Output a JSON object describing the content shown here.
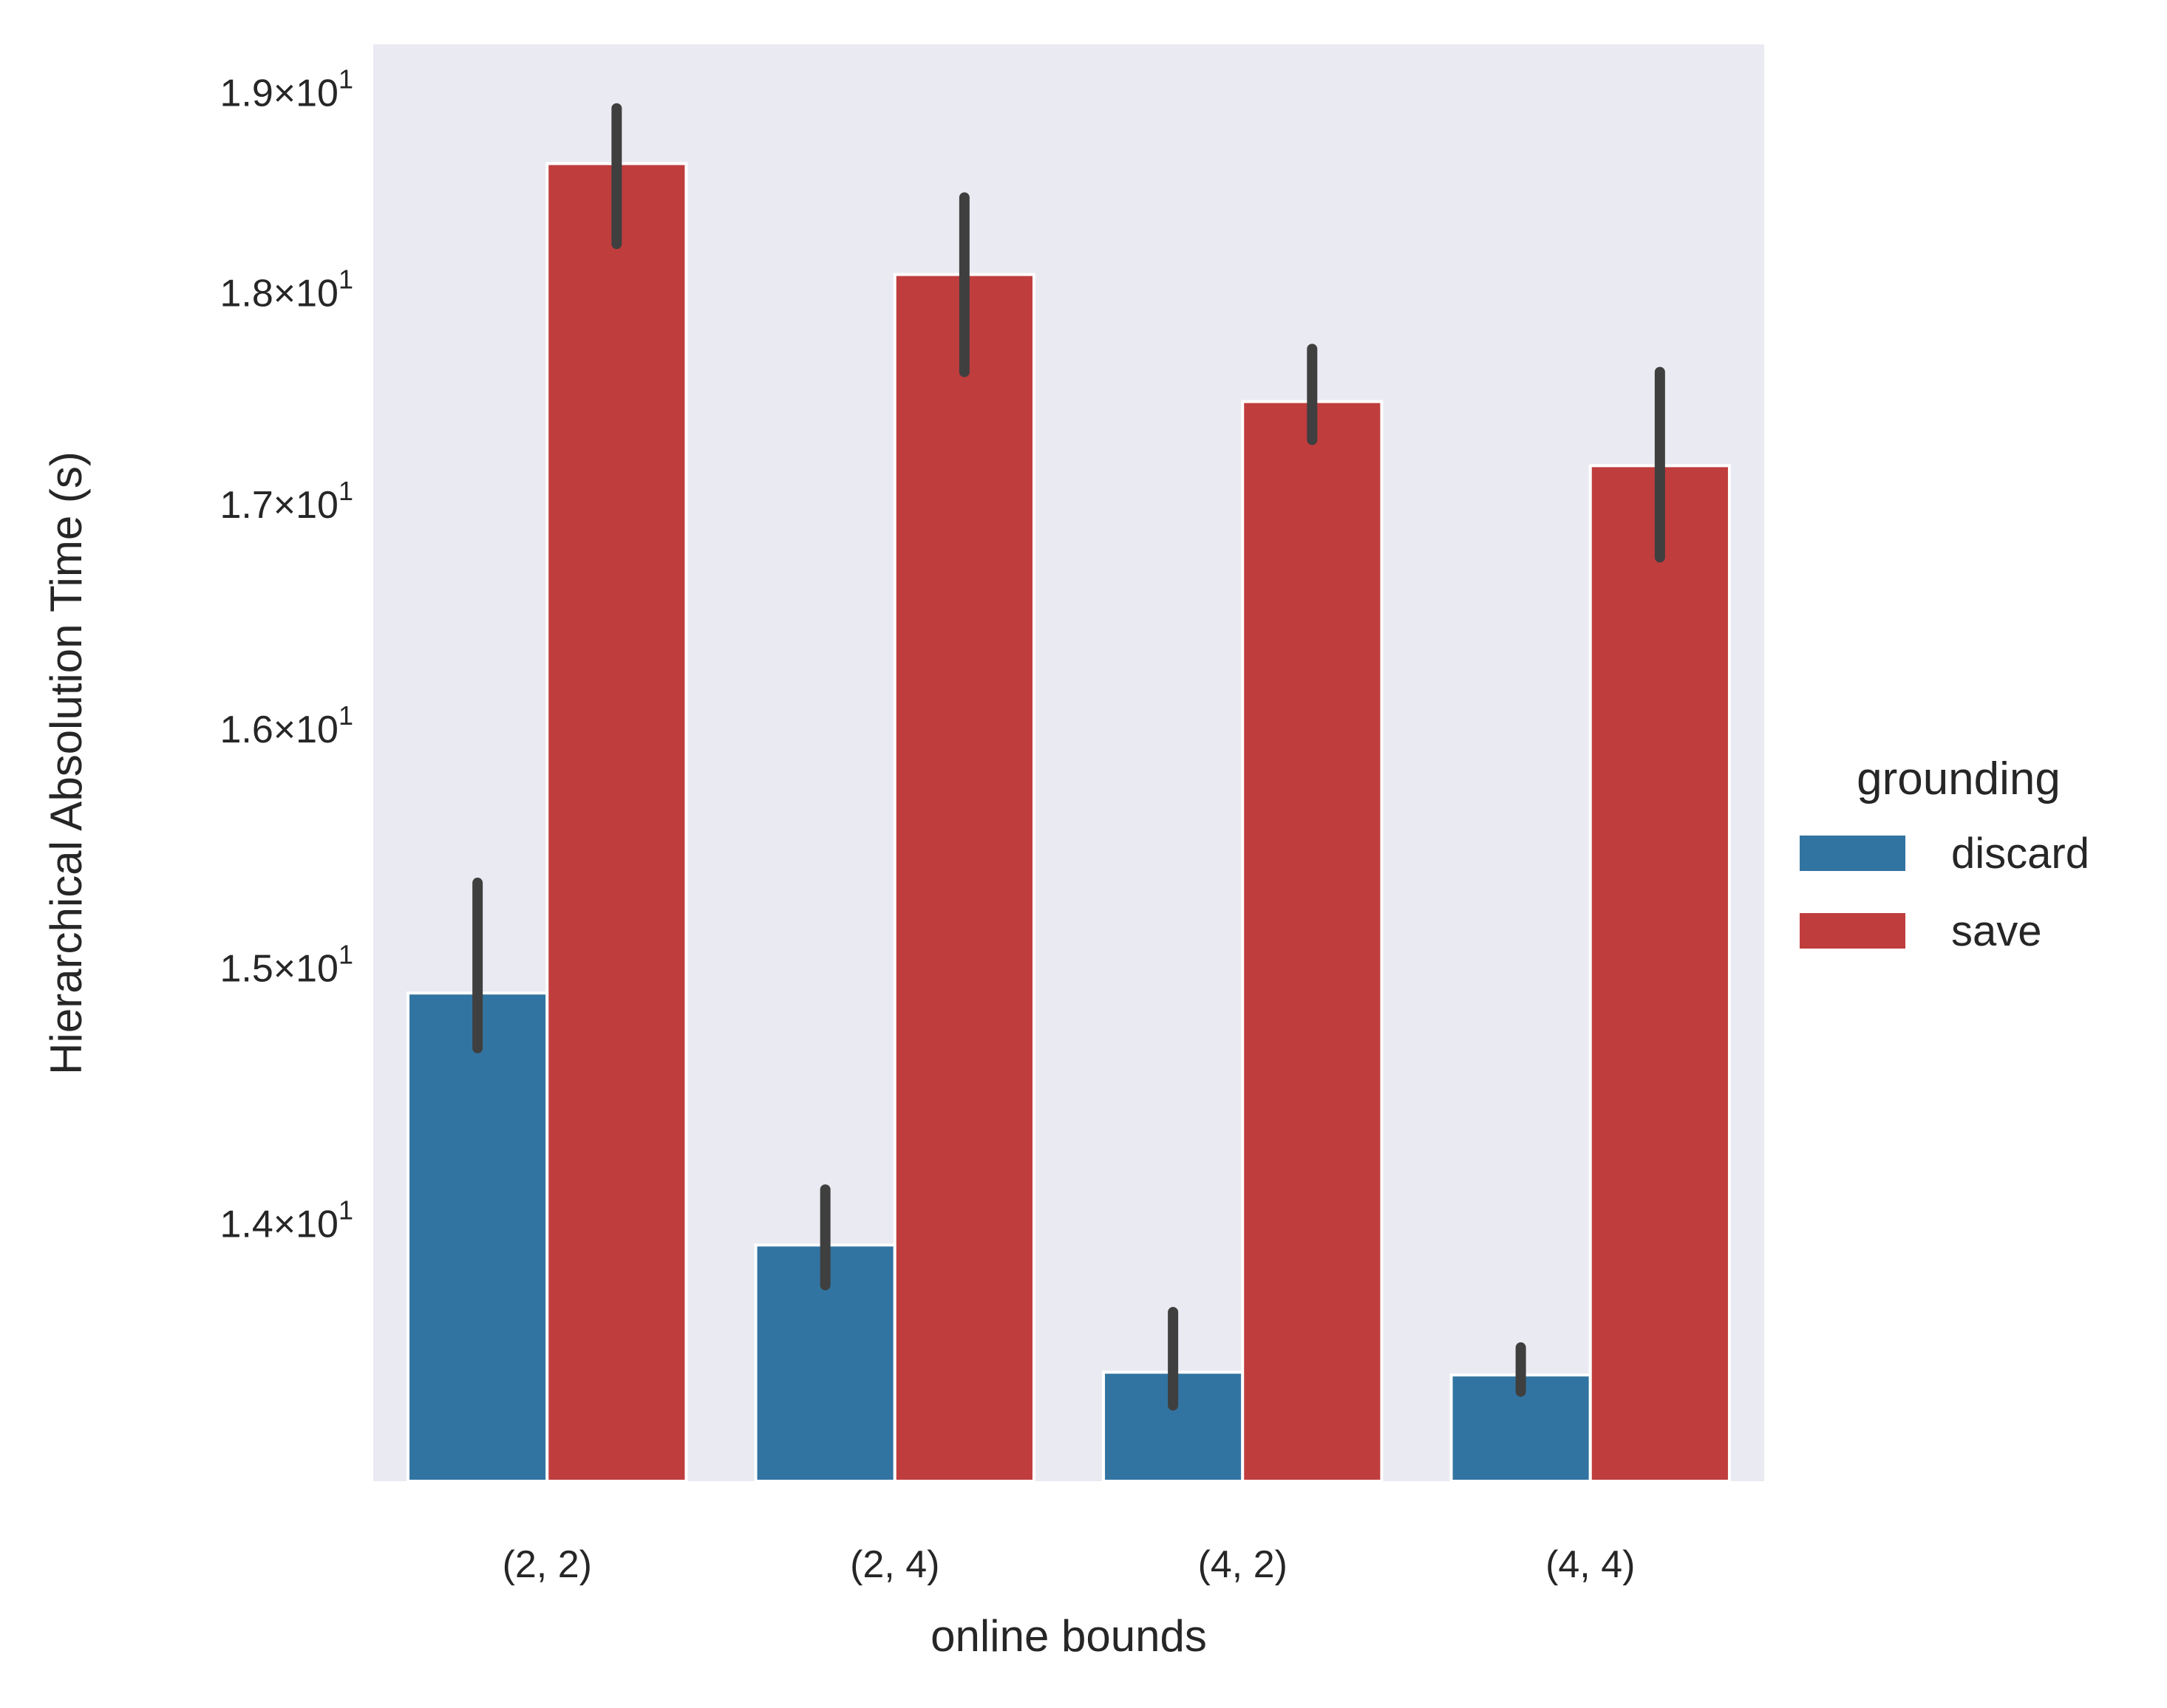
{
  "chart_data": {
    "type": "bar",
    "xlabel": "online bounds",
    "ylabel": "Hierarchical Absolution Time (s)",
    "categories": [
      "(2, 2)",
      "(2, 4)",
      "(4, 2)",
      "(4, 4)"
    ],
    "y_scale": "log",
    "ylim": [
      13.06,
      19.25
    ],
    "y_ticks": [
      {
        "value": 14,
        "mantissa": "1.4",
        "exponent": "1"
      },
      {
        "value": 15,
        "mantissa": "1.5",
        "exponent": "1"
      },
      {
        "value": 16,
        "mantissa": "1.6",
        "exponent": "1"
      },
      {
        "value": 17,
        "mantissa": "1.7",
        "exponent": "1"
      },
      {
        "value": 18,
        "mantissa": "1.8",
        "exponent": "1"
      },
      {
        "value": 19,
        "mantissa": "1.9",
        "exponent": "1"
      }
    ],
    "legend": {
      "title": "grounding",
      "placement": "center-right outside"
    },
    "grid": false,
    "background": "#eaeaf2",
    "series": [
      {
        "name": "discard",
        "color": "#3274a1",
        "values": [
          14.9,
          13.92,
          13.45,
          13.44
        ],
        "ci_low": [
          14.68,
          13.77,
          13.33,
          13.38
        ],
        "ci_high": [
          15.35,
          14.13,
          13.67,
          13.54
        ]
      },
      {
        "name": "save",
        "color": "#c03d3e",
        "values": [
          18.64,
          18.09,
          17.48,
          17.18
        ],
        "ci_low": [
          18.24,
          17.62,
          17.3,
          16.76
        ],
        "ci_high": [
          18.92,
          18.47,
          17.73,
          17.62
        ]
      }
    ]
  }
}
